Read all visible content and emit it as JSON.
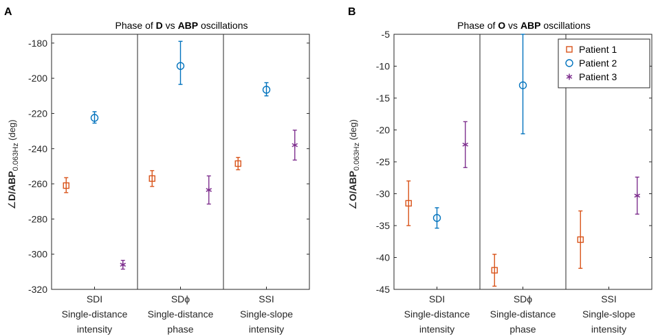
{
  "chart_data": [
    {
      "type": "scatter",
      "panel_label": "A",
      "title_parts": [
        "Phase of ",
        "D",
        " vs ",
        "ABP",
        " oscillations"
      ],
      "ylabel_parts": {
        "angle": "∠",
        "main": "D/ABP",
        "sub": "0.063Hz",
        "unit": "(deg)"
      },
      "ylim": [
        -320,
        -175
      ],
      "yticks": [
        -180,
        -200,
        -220,
        -240,
        -260,
        -280,
        -300,
        -320
      ],
      "group_count": 3,
      "group_labels": [
        [
          "SDI",
          "Single-distance",
          "intensity"
        ],
        [
          "SDϕ",
          "Single-distance",
          "phase"
        ],
        [
          "SSI",
          "Single-slope",
          "intensity"
        ]
      ],
      "series": [
        {
          "name": "Patient 1",
          "marker": "square",
          "color": "#D95319",
          "values": [
            -261,
            -257,
            -248.5
          ],
          "err_low": [
            4,
            4.5,
            3.5
          ],
          "err_high": [
            4.5,
            4.5,
            3.5
          ]
        },
        {
          "name": "Patient 2",
          "marker": "circle",
          "color": "#0072BD",
          "values": [
            -222.5,
            -193,
            -206.5
          ],
          "err_low": [
            3,
            10.5,
            3.5
          ],
          "err_high": [
            3.5,
            14,
            4
          ]
        },
        {
          "name": "Patient 3",
          "marker": "asterisk",
          "color": "#7E2F8E",
          "values": [
            -306,
            -263.5,
            -238
          ],
          "err_low": [
            2.5,
            8,
            8.5
          ],
          "err_high": [
            2.5,
            8,
            8.5
          ]
        }
      ],
      "show_legend": false
    },
    {
      "type": "scatter",
      "panel_label": "B",
      "title_parts": [
        "Phase of ",
        "O",
        " vs ",
        "ABP",
        " oscillations"
      ],
      "ylabel_parts": {
        "angle": "∠",
        "main": "O/ABP",
        "sub": "0.063Hz",
        "unit": "(deg)"
      },
      "ylim": [
        -45,
        -5
      ],
      "yticks": [
        -5,
        -10,
        -15,
        -20,
        -25,
        -30,
        -35,
        -40,
        -45
      ],
      "group_count": 3,
      "group_labels": [
        [
          "SDI",
          "Single-distance",
          "intensity"
        ],
        [
          "SDϕ",
          "Single-distance",
          "phase"
        ],
        [
          "SSI",
          "Single-slope",
          "intensity"
        ]
      ],
      "series": [
        {
          "name": "Patient 1",
          "marker": "square",
          "color": "#D95319",
          "values": [
            -31.5,
            -42,
            -37.2
          ],
          "err_low": [
            3.5,
            2.5,
            4.5
          ],
          "err_high": [
            3.5,
            2.5,
            4.5
          ]
        },
        {
          "name": "Patient 2",
          "marker": "circle",
          "color": "#0072BD",
          "values": [
            -33.8,
            -13,
            null
          ],
          "err_low": [
            1.6,
            7.6,
            null
          ],
          "err_high": [
            1.6,
            8,
            null
          ]
        },
        {
          "name": "Patient 3",
          "marker": "asterisk",
          "color": "#7E2F8E",
          "values": [
            -22.3,
            null,
            -30.3
          ],
          "err_low": [
            3.6,
            null,
            2.9
          ],
          "err_high": [
            3.6,
            null,
            2.9
          ]
        }
      ],
      "show_legend": true,
      "legend_location": "top-right"
    }
  ]
}
